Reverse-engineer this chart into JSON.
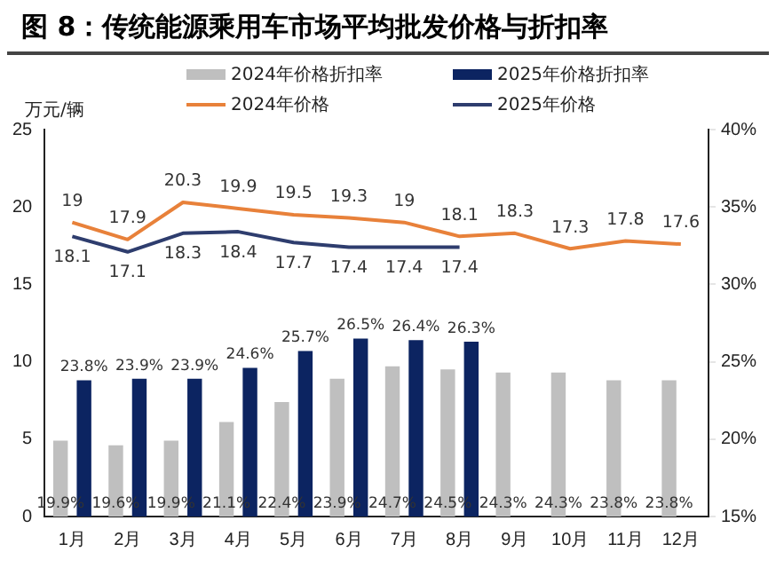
{
  "chart_data": {
    "type": "bar",
    "title": "图 8：传统能源乘用车市场平均批发价格与折扣率",
    "ylabel": "万元/辆",
    "categories": [
      "1月",
      "2月",
      "3月",
      "4月",
      "5月",
      "6月",
      "7月",
      "8月",
      "9月",
      "10月",
      "11月",
      "12月"
    ],
    "series": [
      {
        "name": "2024年价格折扣率",
        "axis": "y2",
        "color": "#bfbfbf",
        "values": [
          19.9,
          19.6,
          19.9,
          21.1,
          22.4,
          23.9,
          24.7,
          24.5,
          24.3,
          24.3,
          23.8,
          23.8
        ],
        "value_labels": [
          "19.9%",
          "19.6%",
          "19.9%",
          "21.1%",
          "22.4%",
          "23.9%",
          "24.7%",
          "24.5%",
          "24.3%",
          "24.3%",
          "23.8%",
          "23.8%"
        ]
      },
      {
        "name": "2025年价格折扣率",
        "axis": "y2",
        "color": "#0c2461",
        "values": [
          23.8,
          23.9,
          23.9,
          24.6,
          25.7,
          26.5,
          26.4,
          26.3,
          null,
          null,
          null,
          null
        ],
        "value_labels": [
          "23.8%",
          "23.9%",
          "23.9%",
          "24.6%",
          "25.7%",
          "26.5%",
          "26.4%",
          "26.3%",
          null,
          null,
          null,
          null
        ]
      },
      {
        "name": "2024年价格",
        "type": "line",
        "color": "#e8813a",
        "values": [
          19,
          17.9,
          20.3,
          19.9,
          19.5,
          19.3,
          19,
          18.1,
          18.3,
          17.3,
          17.8,
          17.6
        ],
        "value_labels": [
          "19",
          "17.9",
          "20.3",
          "19.9",
          "19.5",
          "19.3",
          "19",
          "18.1",
          "18.3",
          "17.3",
          "17.8",
          "17.6"
        ]
      },
      {
        "name": "2025年价格",
        "type": "line",
        "color": "#2e3d6e",
        "values": [
          18.1,
          17.1,
          18.3,
          18.4,
          17.7,
          17.4,
          17.4,
          17.4,
          null,
          null,
          null,
          null
        ],
        "value_labels": [
          "18.1",
          "17.1",
          "18.3",
          "18.4",
          "17.7",
          "17.4",
          "17.4",
          "17.4",
          null,
          null,
          null,
          null
        ]
      }
    ],
    "ylim": [
      0,
      25
    ],
    "yticks": [
      0,
      5,
      10,
      15,
      20,
      25
    ],
    "y2lim": [
      15,
      40
    ],
    "y2ticks": [
      {
        "value": 15,
        "label": "15%"
      },
      {
        "value": 20,
        "label": "20%"
      },
      {
        "value": 25,
        "label": "25%"
      },
      {
        "value": 30,
        "label": "30%"
      },
      {
        "value": 35,
        "label": "35%"
      },
      {
        "value": 40,
        "label": "40%"
      }
    ],
    "legend": "top",
    "marker": "none"
  }
}
